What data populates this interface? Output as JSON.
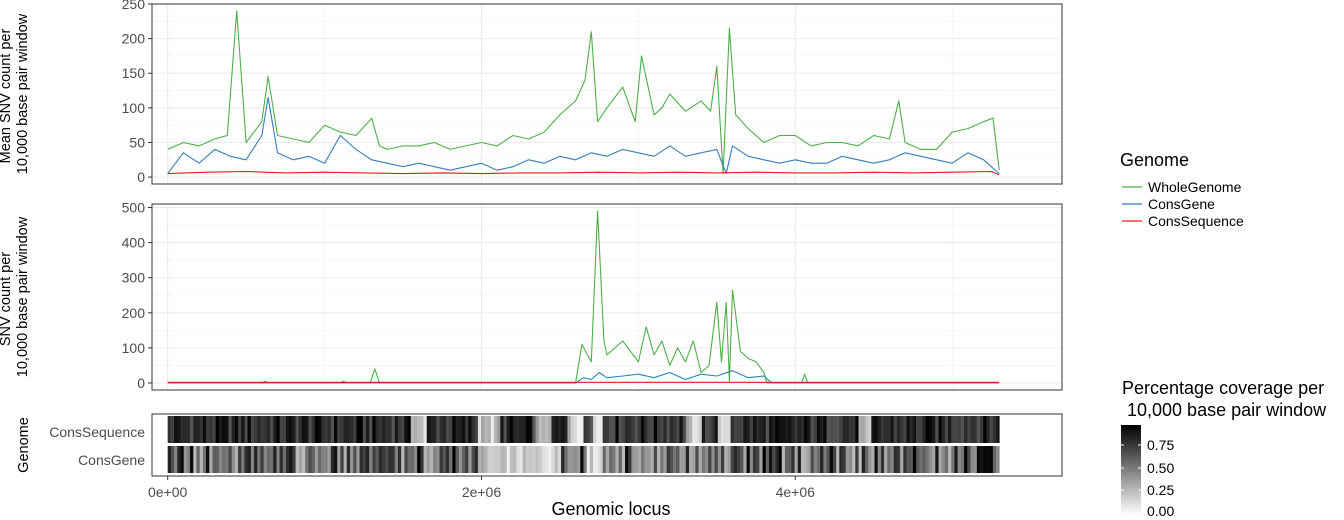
{
  "chart_data": [
    {
      "type": "line",
      "panel": "top",
      "ylabel": [
        "Mean SNV count per",
        "10,000 base pair window"
      ],
      "xlim": [
        -100000,
        5700000
      ],
      "ylim": [
        -10,
        250
      ],
      "yticks": [
        0,
        50,
        100,
        150,
        200,
        250
      ],
      "xgrid": [
        0,
        1000000,
        2000000,
        3000000,
        4000000,
        5000000
      ],
      "grid": true,
      "series": [
        {
          "name": "WholeGenome",
          "color": "#4daf4a",
          "x": [
            0,
            100000,
            200000,
            300000,
            380000,
            440000,
            500000,
            600000,
            640000,
            700000,
            800000,
            900000,
            1000000,
            1100000,
            1200000,
            1300000,
            1350000,
            1400000,
            1500000,
            1600000,
            1700000,
            1800000,
            1900000,
            2000000,
            2100000,
            2200000,
            2300000,
            2400000,
            2500000,
            2600000,
            2660000,
            2700000,
            2740000,
            2800000,
            2900000,
            2980000,
            3020000,
            3100000,
            3150000,
            3200000,
            3300000,
            3400000,
            3460000,
            3500000,
            3540000,
            3580000,
            3620000,
            3700000,
            3800000,
            3900000,
            4000000,
            4100000,
            4200000,
            4300000,
            4400000,
            4500000,
            4600000,
            4660000,
            4700000,
            4800000,
            4900000,
            5000000,
            5100000,
            5200000,
            5260000,
            5300000
          ],
          "values": [
            40,
            50,
            45,
            55,
            60,
            240,
            50,
            80,
            145,
            60,
            55,
            50,
            75,
            65,
            60,
            85,
            45,
            40,
            45,
            45,
            50,
            40,
            45,
            50,
            45,
            60,
            55,
            65,
            90,
            110,
            140,
            210,
            80,
            100,
            130,
            80,
            175,
            90,
            100,
            120,
            95,
            110,
            95,
            160,
            5,
            215,
            90,
            70,
            50,
            60,
            60,
            45,
            50,
            50,
            45,
            60,
            55,
            110,
            50,
            40,
            40,
            65,
            70,
            80,
            85,
            10
          ]
        },
        {
          "name": "ConsGene",
          "color": "#377eb8",
          "x": [
            0,
            100000,
            200000,
            300000,
            400000,
            500000,
            600000,
            640000,
            700000,
            800000,
            900000,
            1000000,
            1100000,
            1200000,
            1300000,
            1400000,
            1500000,
            1600000,
            1700000,
            1800000,
            1900000,
            2000000,
            2100000,
            2200000,
            2300000,
            2400000,
            2500000,
            2600000,
            2700000,
            2800000,
            2900000,
            3000000,
            3100000,
            3200000,
            3300000,
            3400000,
            3500000,
            3560000,
            3600000,
            3700000,
            3800000,
            3900000,
            4000000,
            4100000,
            4200000,
            4300000,
            4400000,
            4500000,
            4600000,
            4700000,
            4800000,
            4900000,
            5000000,
            5100000,
            5200000,
            5300000
          ],
          "values": [
            5,
            35,
            20,
            40,
            30,
            25,
            60,
            115,
            35,
            25,
            30,
            20,
            60,
            40,
            25,
            20,
            15,
            20,
            15,
            10,
            15,
            20,
            10,
            15,
            25,
            20,
            30,
            25,
            35,
            30,
            40,
            35,
            30,
            45,
            30,
            35,
            40,
            5,
            45,
            30,
            25,
            20,
            25,
            20,
            20,
            30,
            25,
            20,
            25,
            35,
            30,
            25,
            20,
            35,
            25,
            5
          ]
        },
        {
          "name": "ConsSequence",
          "color": "#e41a1c",
          "x": [
            0,
            250000,
            500000,
            750000,
            1000000,
            1250000,
            1500000,
            1750000,
            2000000,
            2250000,
            2500000,
            2750000,
            3000000,
            3250000,
            3500000,
            3750000,
            4000000,
            4250000,
            4500000,
            4750000,
            5000000,
            5250000,
            5300000
          ],
          "values": [
            5,
            7,
            8,
            6,
            7,
            6,
            5,
            6,
            5,
            6,
            6,
            7,
            6,
            7,
            6,
            7,
            6,
            6,
            7,
            6,
            7,
            8,
            3
          ]
        }
      ]
    },
    {
      "type": "line",
      "panel": "middle",
      "ylabel": [
        "SNV count per",
        "10,000 base pair window"
      ],
      "xlim": [
        -100000,
        5700000
      ],
      "ylim": [
        -20,
        510
      ],
      "yticks": [
        0,
        100,
        200,
        300,
        400,
        500
      ],
      "xgrid": [
        0,
        1000000,
        2000000,
        3000000,
        4000000,
        5000000
      ],
      "grid": true,
      "series": [
        {
          "name": "WholeGenome",
          "color": "#4daf4a",
          "x": [
            0,
            600000,
            620000,
            640000,
            1100000,
            1120000,
            1140000,
            1290000,
            1320000,
            1350000,
            2600000,
            2640000,
            2700000,
            2740000,
            2780000,
            2800000,
            2900000,
            3000000,
            3050000,
            3100000,
            3150000,
            3200000,
            3250000,
            3300000,
            3350000,
            3400000,
            3450000,
            3500000,
            3530000,
            3560000,
            3580000,
            3600000,
            3650000,
            3700000,
            3750000,
            3800000,
            3820000,
            4040000,
            4060000,
            4080000,
            5300000
          ],
          "values": [
            0,
            0,
            5,
            0,
            0,
            5,
            0,
            0,
            40,
            0,
            0,
            110,
            60,
            490,
            120,
            80,
            120,
            60,
            160,
            80,
            120,
            50,
            100,
            60,
            120,
            30,
            50,
            230,
            60,
            230,
            5,
            265,
            90,
            70,
            60,
            30,
            0,
            0,
            25,
            0,
            0
          ]
        },
        {
          "name": "ConsGene",
          "color": "#377eb8",
          "x": [
            0,
            2600000,
            2650000,
            2700000,
            2750000,
            2800000,
            2900000,
            3000000,
            3100000,
            3200000,
            3300000,
            3400000,
            3500000,
            3600000,
            3700000,
            3800000,
            3850000,
            5300000
          ],
          "values": [
            0,
            0,
            15,
            10,
            30,
            15,
            20,
            25,
            15,
            30,
            10,
            25,
            20,
            35,
            15,
            20,
            0,
            0
          ]
        },
        {
          "name": "ConsSequence",
          "color": "#e41a1c",
          "x": [
            0,
            5300000
          ],
          "values": [
            2,
            2
          ]
        }
      ]
    },
    {
      "type": "heatmap",
      "panel": "bottom",
      "ylabel": "Genome",
      "rows": [
        "ConsSequence",
        "ConsGene"
      ],
      "xlim": [
        -100000,
        5700000
      ],
      "xlabel": "Genomic locus",
      "xticks": [
        {
          "value": 0,
          "label": "0e+00"
        },
        {
          "value": 2000000,
          "label": "2e+06"
        },
        {
          "value": 4000000,
          "label": "4e+06"
        }
      ],
      "bins": 260,
      "span": [
        0,
        5300000
      ]
    }
  ],
  "legend": {
    "genome": {
      "title": "Genome",
      "items": [
        {
          "label": "WholeGenome",
          "color": "#4daf4a"
        },
        {
          "label": "ConsGene",
          "color": "#377eb8"
        },
        {
          "label": "ConsSequence",
          "color": "#e41a1c"
        }
      ]
    },
    "coverage": {
      "title_line1": "Percentage coverage per",
      "title_line2": "10,000 base pair window",
      "ticks": [
        "0.75",
        "0.50",
        "0.25",
        "0.00"
      ]
    }
  }
}
